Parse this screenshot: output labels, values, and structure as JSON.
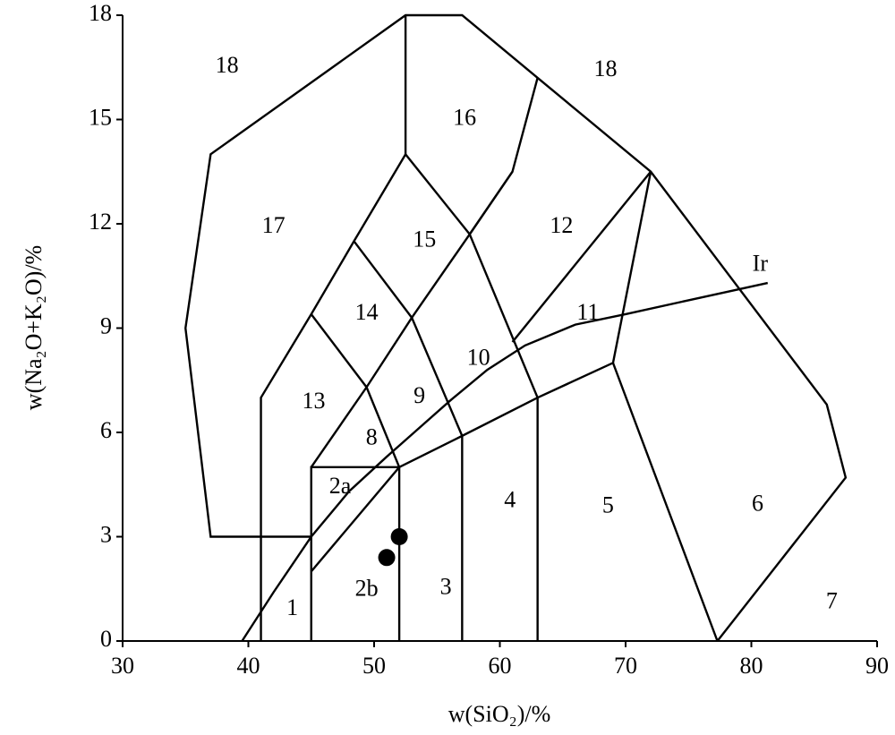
{
  "chart_data": {
    "type": "scatter",
    "xlabel": "w(SiO₂)/%",
    "ylabel": "w(Na₂O+K₂O)/%",
    "xlim": [
      30,
      90
    ],
    "ylim": [
      0,
      18
    ],
    "xticks": [
      30,
      40,
      50,
      60,
      70,
      80,
      90
    ],
    "yticks": [
      0,
      3,
      6,
      9,
      12,
      15,
      18
    ],
    "color": "#000000",
    "x": [
      52,
      51
    ],
    "values": [
      3.0,
      2.4
    ],
    "fields": [
      {
        "x": [
          45,
          37,
          35,
          37,
          52.5,
          57,
          63,
          72,
          86,
          87.5,
          77.3
        ],
        "y": [
          3,
          3,
          9,
          14,
          18,
          18,
          16.2,
          13.5,
          6.8,
          4.7,
          0
        ]
      },
      {
        "x": [
          41,
          41,
          45,
          48.4,
          52.5,
          57.6,
          61,
          63
        ],
        "y": [
          0,
          7,
          9.4,
          11.5,
          14,
          11.7,
          13.5,
          16.2
        ]
      },
      {
        "x": [
          52.5,
          52.5
        ],
        "y": [
          14,
          18
        ]
      },
      {
        "x": [
          45,
          45,
          52,
          52
        ],
        "y": [
          0,
          5,
          5,
          0
        ]
      },
      {
        "x": [
          45,
          49.4,
          53,
          57.6,
          61
        ],
        "y": [
          5,
          7.3,
          9.3,
          11.7,
          13.5
        ]
      },
      {
        "x": [
          45,
          49.4,
          52
        ],
        "y": [
          9.4,
          7.3,
          5
        ]
      },
      {
        "x": [
          48.4,
          53,
          57
        ],
        "y": [
          11.5,
          9.3,
          5.9
        ]
      },
      {
        "x": [
          57.6,
          63
        ],
        "y": [
          11.7,
          7
        ]
      },
      {
        "x": [
          45,
          52,
          57,
          63,
          69,
          77.3
        ],
        "y": [
          2,
          5,
          5.9,
          7,
          8,
          0
        ]
      },
      {
        "x": [
          57,
          57
        ],
        "y": [
          0,
          5.9
        ]
      },
      {
        "x": [
          63,
          63
        ],
        "y": [
          0,
          7
        ]
      },
      {
        "x": [
          69,
          72
        ],
        "y": [
          8,
          13.5
        ]
      },
      {
        "x": [
          61,
          72
        ],
        "y": [
          8.6,
          13.5
        ]
      },
      {
        "x": [
          39.5,
          42,
          45,
          48,
          51,
          53.5,
          56,
          59,
          62,
          66,
          70,
          75,
          81.3
        ],
        "y": [
          0,
          1.4,
          3.0,
          4.3,
          5.3,
          6.1,
          6.9,
          7.8,
          8.5,
          9.1,
          9.4,
          9.8,
          10.3
        ]
      }
    ],
    "field_labels": [
      {
        "label": "18",
        "x": 38.3,
        "y": 16.5
      },
      {
        "label": "18",
        "x": 68.4,
        "y": 16.4
      },
      {
        "label": "16",
        "x": 57.2,
        "y": 15
      },
      {
        "label": "17",
        "x": 42,
        "y": 11.9
      },
      {
        "label": "15",
        "x": 54,
        "y": 11.5
      },
      {
        "label": "12",
        "x": 64.9,
        "y": 11.9
      },
      {
        "label": "Ir",
        "x": 80.7,
        "y": 10.8
      },
      {
        "label": "14",
        "x": 49.4,
        "y": 9.4
      },
      {
        "label": "11",
        "x": 67,
        "y": 9.4
      },
      {
        "label": "10",
        "x": 58.3,
        "y": 8.1
      },
      {
        "label": "13",
        "x": 45.2,
        "y": 6.85
      },
      {
        "label": "9",
        "x": 53.6,
        "y": 7.0
      },
      {
        "label": "8",
        "x": 49.8,
        "y": 5.8
      },
      {
        "label": "2a",
        "x": 47.3,
        "y": 4.4
      },
      {
        "label": "4",
        "x": 60.8,
        "y": 4.0
      },
      {
        "label": "5",
        "x": 68.6,
        "y": 3.85
      },
      {
        "label": "6",
        "x": 80.5,
        "y": 3.9
      },
      {
        "label": "2b",
        "x": 49.4,
        "y": 1.45
      },
      {
        "label": "3",
        "x": 55.7,
        "y": 1.5
      },
      {
        "label": "1",
        "x": 43.5,
        "y": 0.9
      },
      {
        "label": "7",
        "x": 86.4,
        "y": 1.1
      }
    ]
  }
}
